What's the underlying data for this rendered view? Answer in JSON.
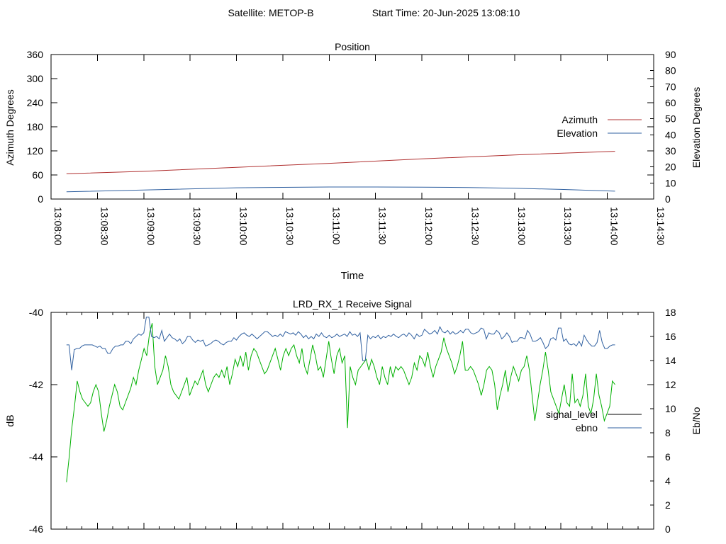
{
  "header": {
    "satellite": "Satellite: METOP-B",
    "start_time": "Start Time: 20-Jun-2025 13:08:10"
  },
  "chart_data": [
    {
      "type": "line",
      "title": "Position",
      "xlabel": "Time",
      "ylabel": "Azimuth Degrees",
      "y2label": "Elevation Degrees",
      "xlim": [
        "13:08:00",
        "13:14:30"
      ],
      "ylim": [
        0,
        360
      ],
      "y2lim": [
        0,
        90
      ],
      "x_ticks": [
        "13:08:00",
        "13:08:30",
        "13:09:00",
        "13:09:30",
        "13:10:00",
        "13:10:30",
        "13:11:00",
        "13:11:30",
        "13:12:00",
        "13:12:30",
        "13:13:00",
        "13:13:30",
        "13:14:00",
        "13:14:30"
      ],
      "y_ticks": [
        "0",
        "60",
        "120",
        "180",
        "240",
        "300",
        "360"
      ],
      "y2_ticks": [
        "0",
        "10",
        "20",
        "30",
        "40",
        "50",
        "60",
        "70",
        "80",
        "90"
      ],
      "grid": false,
      "legend": "right",
      "series": [
        {
          "name": "Azimuth",
          "axis": "y",
          "color": "#b03030",
          "points": [
            [
              "13:08:10",
              63
            ],
            [
              "13:09:00",
              69
            ],
            [
              "13:10:00",
              79
            ],
            [
              "13:11:00",
              89
            ],
            [
              "13:12:00",
              100
            ],
            [
              "13:13:00",
              110
            ],
            [
              "13:14:05",
              119
            ]
          ]
        },
        {
          "name": "Elevation",
          "axis": "y2",
          "color": "#3060a0",
          "points": [
            [
              "13:08:10",
              4.5
            ],
            [
              "13:09:00",
              5.6
            ],
            [
              "13:10:00",
              7.0
            ],
            [
              "13:10:30",
              7.3
            ],
            [
              "13:11:00",
              7.5
            ],
            [
              "13:11:30",
              7.5
            ],
            [
              "13:12:00",
              7.4
            ],
            [
              "13:12:30",
              7.2
            ],
            [
              "13:13:00",
              6.7
            ],
            [
              "13:13:30",
              6.0
            ],
            [
              "13:14:05",
              4.9
            ]
          ]
        }
      ]
    },
    {
      "type": "line",
      "title": "LRD_RX_1 Receive Signal",
      "ylabel": "dB",
      "y2label": "Eb/No",
      "xlim": [
        "13:08:00",
        "13:14:30"
      ],
      "ylim": [
        -46,
        -40
      ],
      "y2lim": [
        0,
        18
      ],
      "y_ticks": [
        "-46",
        "-44",
        "-42",
        "-40"
      ],
      "y2_ticks": [
        "0",
        "2",
        "4",
        "6",
        "8",
        "10",
        "12",
        "14",
        "16",
        "18"
      ],
      "grid": false,
      "legend": "right",
      "series": [
        {
          "name": "signal_level",
          "axis": "y",
          "color": "#00b000",
          "values": [
            -44.7,
            -44.0,
            -43.2,
            -42.6,
            -41.9,
            -42.2,
            -42.4,
            -42.5,
            -42.6,
            -42.5,
            -42.2,
            -42.0,
            -42.2,
            -42.8,
            -43.3,
            -43.0,
            -42.6,
            -42.3,
            -42.0,
            -42.2,
            -42.6,
            -42.7,
            -42.5,
            -42.3,
            -42.1,
            -41.8,
            -42.0,
            -41.6,
            -41.3,
            -41.0,
            -41.2,
            -40.6,
            -40.3,
            -41.5,
            -42.0,
            -41.8,
            -41.6,
            -41.2,
            -41.5,
            -42.0,
            -42.2,
            -42.3,
            -42.4,
            -42.2,
            -42.0,
            -41.8,
            -42.3,
            -42.1,
            -41.9,
            -42.0,
            -41.8,
            -41.6,
            -42.0,
            -42.2,
            -42.0,
            -41.8,
            -41.7,
            -41.8,
            -41.6,
            -41.8,
            -41.5,
            -42.0,
            -41.7,
            -41.3,
            -41.5,
            -41.2,
            -41.5,
            -41.1,
            -41.6,
            -41.2,
            -41.0,
            -41.1,
            -41.3,
            -41.5,
            -41.7,
            -41.6,
            -41.4,
            -41.2,
            -41.0,
            -41.3,
            -41.6,
            -41.2,
            -41.0,
            -41.2,
            -41.0,
            -40.9,
            -41.2,
            -41.4,
            -41.0,
            -41.5,
            -41.7,
            -41.3,
            -40.9,
            -41.2,
            -41.6,
            -41.5,
            -41.8,
            -41.3,
            -40.8,
            -41.3,
            -41.7,
            -41.2,
            -41.0,
            -41.4,
            -41.2,
            -43.2,
            -41.5,
            -41.8,
            -42.0,
            -41.6,
            -41.5,
            -41.4,
            -41.3,
            -41.6,
            -41.3,
            -41.5,
            -41.8,
            -42.0,
            -41.5,
            -41.8,
            -42.0,
            -41.5,
            -41.8,
            -41.5,
            -41.6,
            -41.5,
            -41.6,
            -41.8,
            -42.0,
            -41.8,
            -41.4,
            -41.6,
            -41.2,
            -41.3,
            -41.5,
            -41.1,
            -41.5,
            -41.8,
            -41.5,
            -41.3,
            -41.1,
            -40.7,
            -41.0,
            -41.2,
            -41.4,
            -41.7,
            -41.5,
            -41.2,
            -40.8,
            -41.6,
            -41.6,
            -41.5,
            -41.6,
            -41.8,
            -42.0,
            -42.3,
            -42.0,
            -41.6,
            -41.5,
            -41.6,
            -42.0,
            -42.7,
            -42.3,
            -42.0,
            -41.6,
            -42.2,
            -41.8,
            -41.5,
            -41.7,
            -41.9,
            -41.6,
            -41.5,
            -41.2,
            -41.6,
            -42.3,
            -43.0,
            -42.5,
            -42.0,
            -41.6,
            -41.1,
            -41.6,
            -42.2,
            -42.4,
            -42.6,
            -42.8,
            -42.4,
            -42.0,
            -42.5,
            -42.6,
            -41.7,
            -42.5,
            -42.4,
            -42.6,
            -42.3,
            -41.7,
            -42.6,
            -42.8,
            -42.4,
            -41.7,
            -42.3,
            -42.6,
            -43.0,
            -42.8,
            -42.6,
            -41.9,
            -42.0
          ],
          "x_start": "13:08:10",
          "x_end": "13:14:05"
        },
        {
          "name": "ebno",
          "axis": "y2",
          "color": "#3060a0",
          "values": [
            15.3,
            15.3,
            13.2,
            14.9,
            15.0,
            15.0,
            15.2,
            15.3,
            15.3,
            15.3,
            15.3,
            15.2,
            15.1,
            15.2,
            15.0,
            15.0,
            14.6,
            14.6,
            15.0,
            15.2,
            15.2,
            15.3,
            15.3,
            15.6,
            15.6,
            15.4,
            15.8,
            16.0,
            16.2,
            16.1,
            16.3,
            17.6,
            17.6,
            16.0,
            15.9,
            16.0,
            15.8,
            16.5,
            15.6,
            15.9,
            16.2,
            15.9,
            15.8,
            15.6,
            15.8,
            15.4,
            15.6,
            16.0,
            16.0,
            15.7,
            15.5,
            15.7,
            15.6,
            15.7,
            15.2,
            15.3,
            15.4,
            15.6,
            15.7,
            15.6,
            15.4,
            15.3,
            15.5,
            15.6,
            15.6,
            15.9,
            15.7,
            16.0,
            16.2,
            16.3,
            16.1,
            16.0,
            16.2,
            16.0,
            15.8,
            16.0,
            16.2,
            16.4,
            16.4,
            16.2,
            16.0,
            16.1,
            16.0,
            16.2,
            16.0,
            16.4,
            16.3,
            16.2,
            16.3,
            16.1,
            16.4,
            16.2,
            15.9,
            16.1,
            15.8,
            16.0,
            15.8,
            16.2,
            16.0,
            16.3,
            16.0,
            15.9,
            16.1,
            15.9,
            16.0,
            16.2,
            16.0,
            16.1,
            16.2,
            16.0,
            16.4,
            16.1,
            16.2,
            16.0,
            16.3,
            14.0,
            14.0,
            16.1,
            15.8,
            16.0,
            15.9,
            16.1,
            15.8,
            16.0,
            15.9,
            16.1,
            16.0,
            16.2,
            16.0,
            15.9,
            16.1,
            16.2,
            16.0,
            16.3,
            16.1,
            15.8,
            16.2,
            16.0,
            16.1,
            16.6,
            16.4,
            16.2,
            16.3,
            16.5,
            16.2,
            16.8,
            16.4,
            16.3,
            16.5,
            16.2,
            16.4,
            16.2,
            16.3,
            16.5,
            16.3,
            16.6,
            16.6,
            16.3,
            16.2,
            16.3,
            16.4,
            16.7,
            16.6,
            15.8,
            16.3,
            16.2,
            16.2,
            16.5,
            16.3,
            15.8,
            16.0,
            16.3,
            16.0,
            15.5,
            15.6,
            15.6,
            15.9,
            15.9,
            15.8,
            16.5,
            16.2,
            15.6,
            15.6,
            15.7,
            15.9,
            15.5,
            15.0,
            15.2,
            15.8,
            15.9,
            15.7,
            16.7,
            16.7,
            15.6,
            15.8,
            15.4,
            15.3,
            15.4,
            15.2,
            15.6,
            15.2,
            16.1,
            15.7,
            15.4,
            15.2,
            15.2,
            15.5,
            16.5,
            15.5,
            15.0,
            15.0,
            15.2,
            15.3,
            15.3
          ],
          "x_start": "13:08:10",
          "x_end": "13:14:05"
        }
      ]
    }
  ]
}
